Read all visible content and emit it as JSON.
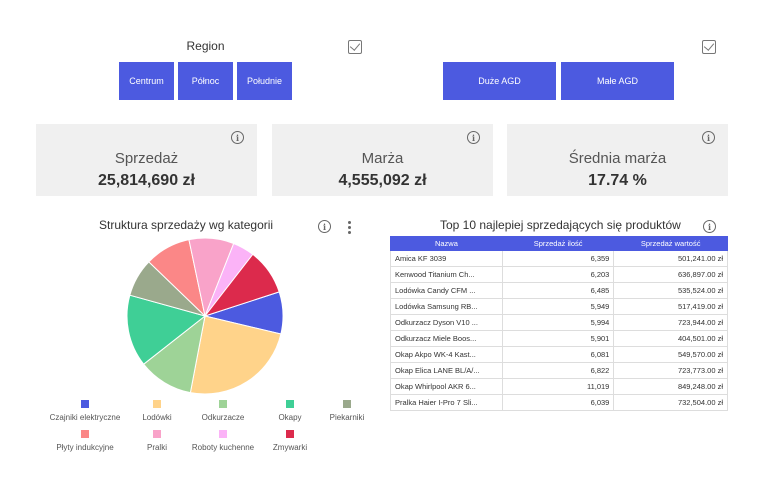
{
  "region": {
    "title": "Region",
    "buttons": [
      "Centrum",
      "Północ",
      "Południe"
    ]
  },
  "segment": {
    "buttons": [
      "Duże AGD",
      "Małe AGD"
    ]
  },
  "kpis": [
    {
      "label": "Sprzedaż",
      "value": "25,814,690 zł"
    },
    {
      "label": "Marża",
      "value": "4,555,092 zł"
    },
    {
      "label": "Średnia marża",
      "value": "17.74 %"
    }
  ],
  "icons": {
    "info": "i"
  },
  "pie": {
    "title": "Struktura sprzedaży wg kategorii"
  },
  "chart_data": {
    "type": "pie",
    "title": "Struktura sprzedaży wg kategorii",
    "categories": [
      "Czajniki elektryczne",
      "Lodówki",
      "Odkurzacze",
      "Okapy",
      "Piekarniki",
      "Płyty indukcyjne",
      "Pralki",
      "Roboty kuchenne",
      "Zmywarki"
    ],
    "values": [
      8.7,
      24.3,
      11.4,
      14.9,
      7.9,
      9.5,
      9.3,
      4.5,
      9.5
    ],
    "colors": [
      "#4c5ae0",
      "#ffd38a",
      "#9ed397",
      "#3fcf96",
      "#9aa98c",
      "#fb8787",
      "#f9a3c9",
      "#fbb3f7",
      "#dc2a4c"
    ],
    "legend": "bottom"
  },
  "table": {
    "title": "Top 10 najlepiej sprzedających się produktów",
    "headers": [
      "Nazwa",
      "Sprzedaż ilość",
      "Sprzedaż wartość"
    ],
    "rows": [
      [
        "Amica KF 3039",
        "6,359",
        "501,241.00 zł"
      ],
      [
        "Kenwood Titanium Ch...",
        "6,203",
        "636,897.00 zł"
      ],
      [
        "Lodówka Candy CFM ...",
        "6,485",
        "535,524.00 zł"
      ],
      [
        "Lodówka Samsung RB...",
        "5,949",
        "517,419.00 zł"
      ],
      [
        "Odkurzacz Dyson V10 ...",
        "5,994",
        "723,944.00 zł"
      ],
      [
        "Odkurzacz Miele Boos...",
        "5,901",
        "404,501.00 zł"
      ],
      [
        "Okap Akpo WK-4 Kast...",
        "6,081",
        "549,570.00 zł"
      ],
      [
        "Okap Elica LANE BL/A/...",
        "6,822",
        "723,773.00 zł"
      ],
      [
        "Okap Whirlpool AKR 6...",
        "11,019",
        "849,248.00 zł"
      ],
      [
        "Pralka Haier I-Pro 7 Sli...",
        "6,039",
        "732,504.00 zł"
      ]
    ]
  }
}
